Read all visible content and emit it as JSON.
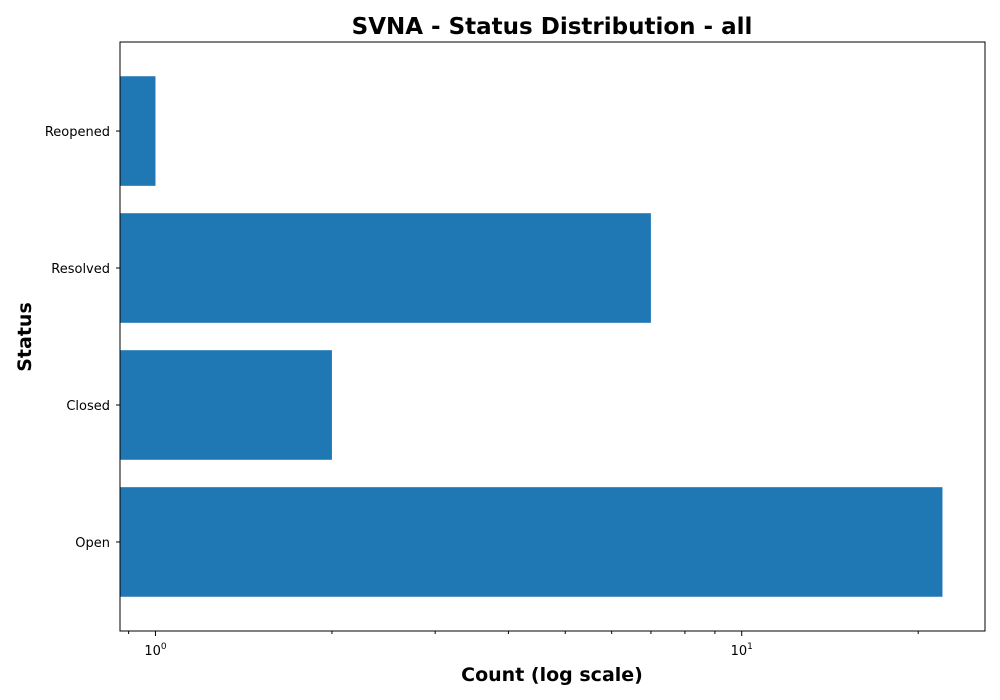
{
  "chart_data": {
    "type": "bar",
    "orientation": "horizontal",
    "title": "SVNA - Status Distribution - all",
    "xlabel": "Count (log scale)",
    "ylabel": "Status",
    "xscale": "log",
    "xlim": [
      0.87,
      26
    ],
    "categories": [
      "Open",
      "Closed",
      "Resolved",
      "Reopened"
    ],
    "values": [
      22,
      2,
      7,
      1
    ],
    "x_ticks": [
      {
        "value": 1,
        "base": "10",
        "exp": "0"
      },
      {
        "value": 10,
        "base": "10",
        "exp": "1"
      }
    ],
    "bar_color": "#1f77b4",
    "grid": false,
    "legend": "none"
  }
}
